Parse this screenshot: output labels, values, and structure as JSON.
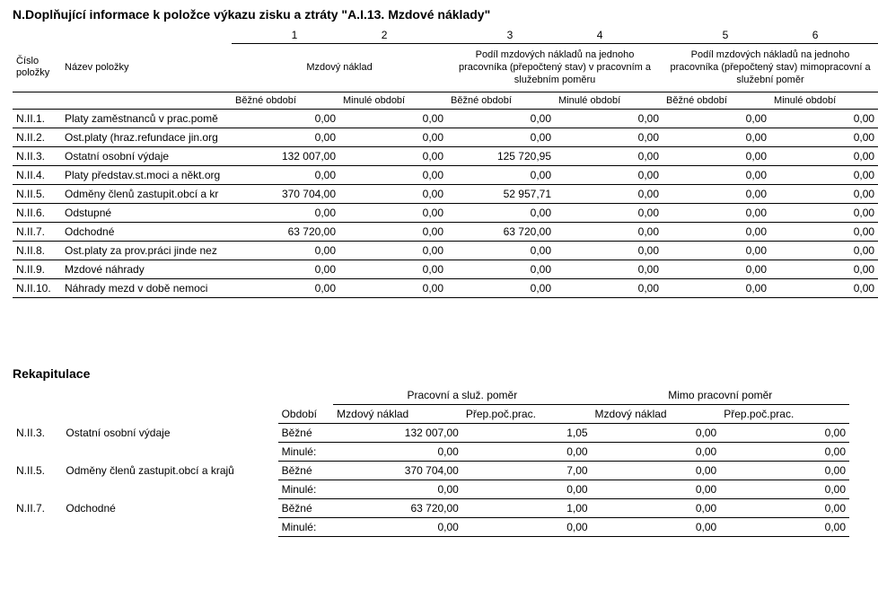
{
  "title": "N.Doplňující informace k položce výkazu zisku a ztráty \"A.I.13. Mzdové náklady\"",
  "header": {
    "col_nums": [
      "1",
      "2",
      "3",
      "4",
      "5",
      "6"
    ],
    "item_no": "Číslo položky",
    "item_name": "Název položky",
    "g1": "Mzdový náklad",
    "g2": "Podíl mzdových nákladů na jednoho pracovníka (přepočtený stav) v pracovním a služebním poměru",
    "g3": "Podíl mzdových nákladů na jednoho pracovníka (přepočtený stav) mimopracovní a služební poměr",
    "bezne": "Běžné období",
    "minule": "Minulé období"
  },
  "rows": [
    {
      "code": "N.II.1.",
      "name": "Platy zaměstnanců v prac.pomě",
      "v": [
        "0,00",
        "0,00",
        "0,00",
        "0,00",
        "0,00",
        "0,00"
      ]
    },
    {
      "code": "N.II.2.",
      "name": "Ost.platy (hraz.refundace jin.org",
      "v": [
        "0,00",
        "0,00",
        "0,00",
        "0,00",
        "0,00",
        "0,00"
      ]
    },
    {
      "code": "N.II.3.",
      "name": "Ostatní osobní výdaje",
      "v": [
        "132 007,00",
        "0,00",
        "125 720,95",
        "0,00",
        "0,00",
        "0,00"
      ]
    },
    {
      "code": "N.II.4.",
      "name": "Platy představ.st.moci a někt.org",
      "v": [
        "0,00",
        "0,00",
        "0,00",
        "0,00",
        "0,00",
        "0,00"
      ]
    },
    {
      "code": "N.II.5.",
      "name": "Odměny členů zastupit.obcí a kr",
      "v": [
        "370 704,00",
        "0,00",
        "52 957,71",
        "0,00",
        "0,00",
        "0,00"
      ]
    },
    {
      "code": "N.II.6.",
      "name": "Odstupné",
      "v": [
        "0,00",
        "0,00",
        "0,00",
        "0,00",
        "0,00",
        "0,00"
      ]
    },
    {
      "code": "N.II.7.",
      "name": "Odchodné",
      "v": [
        "63 720,00",
        "0,00",
        "63 720,00",
        "0,00",
        "0,00",
        "0,00"
      ]
    },
    {
      "code": "N.II.8.",
      "name": "Ost.platy za prov.práci jinde nez",
      "v": [
        "0,00",
        "0,00",
        "0,00",
        "0,00",
        "0,00",
        "0,00"
      ]
    },
    {
      "code": "N.II.9.",
      "name": "Mzdové náhrady",
      "v": [
        "0,00",
        "0,00",
        "0,00",
        "0,00",
        "0,00",
        "0,00"
      ]
    },
    {
      "code": "N.II.10.",
      "name": "Náhrady mezd v době nemoci",
      "v": [
        "0,00",
        "0,00",
        "0,00",
        "0,00",
        "0,00",
        "0,00"
      ]
    }
  ],
  "recap": {
    "title": "Rekapitulace",
    "h1": "Pracovní a služ. poměr",
    "h2": "Mimo pracovní poměr",
    "c_obdobi": "Období",
    "c_mzd": "Mzdový náklad",
    "c_prep": "Přep.poč.prac.",
    "bezne": "Běžné",
    "minule": "Minulé:",
    "items": [
      {
        "code": "N.II.3.",
        "name": "Ostatní osobní výdaje",
        "b": [
          "132 007,00",
          "1,05",
          "0,00",
          "0,00"
        ],
        "m": [
          "0,00",
          "0,00",
          "0,00",
          "0,00"
        ]
      },
      {
        "code": "N.II.5.",
        "name": "Odměny členů zastupit.obcí a krajů",
        "b": [
          "370 704,00",
          "7,00",
          "0,00",
          "0,00"
        ],
        "m": [
          "0,00",
          "0,00",
          "0,00",
          "0,00"
        ]
      },
      {
        "code": "N.II.7.",
        "name": "Odchodné",
        "b": [
          "63 720,00",
          "1,00",
          "0,00",
          "0,00"
        ],
        "m": [
          "0,00",
          "0,00",
          "0,00",
          "0,00"
        ]
      }
    ]
  }
}
